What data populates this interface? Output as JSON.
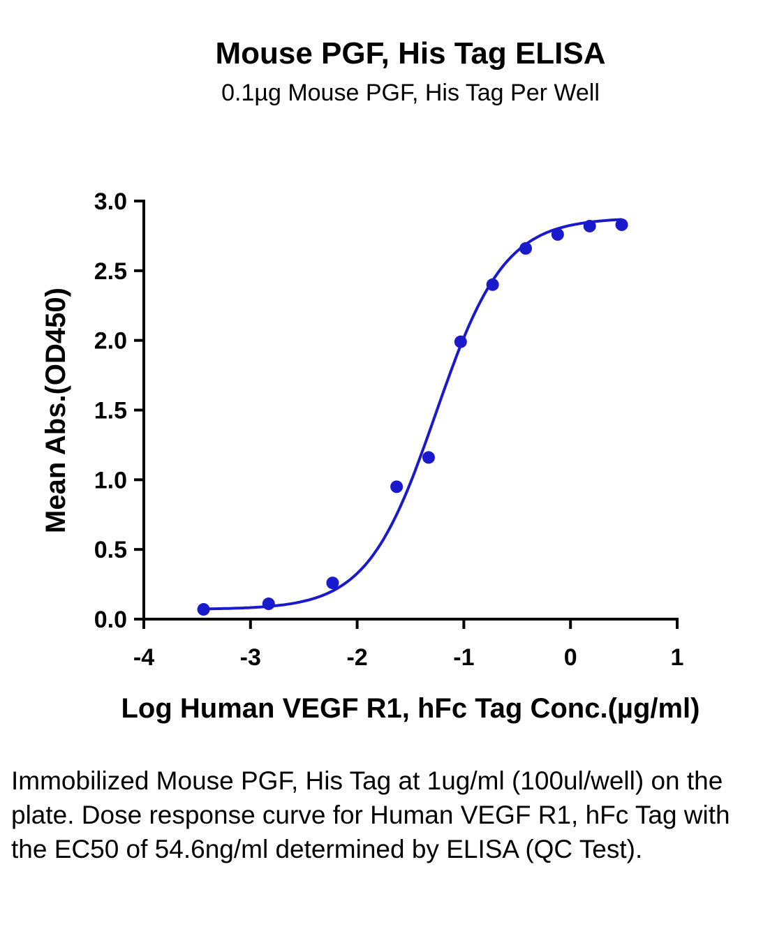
{
  "chart_data": {
    "type": "scatter",
    "title": "Mouse PGF, His Tag ELISA",
    "subtitle": "0.1µg Mouse PGF, His Tag Per Well",
    "xlabel": "Log Human VEGF R1, hFc Tag Conc.(µg/ml)",
    "ylabel": "Mean Abs.(OD450)",
    "xlim": [
      -4,
      1
    ],
    "ylim": [
      0,
      3
    ],
    "x_ticks": [
      "-4",
      "-3",
      "-2",
      "-1",
      "0",
      "1"
    ],
    "y_ticks": [
      "0.0",
      "0.5",
      "1.0",
      "1.5",
      "2.0",
      "2.5",
      "3.0"
    ],
    "series": [
      {
        "points": [
          {
            "x": -3.44,
            "y": 0.07
          },
          {
            "x": -2.83,
            "y": 0.11
          },
          {
            "x": -2.23,
            "y": 0.26
          },
          {
            "x": -1.63,
            "y": 0.95
          },
          {
            "x": -1.33,
            "y": 1.16
          },
          {
            "x": -1.03,
            "y": 1.99
          },
          {
            "x": -0.73,
            "y": 2.4
          },
          {
            "x": -0.42,
            "y": 2.66
          },
          {
            "x": -0.12,
            "y": 2.76
          },
          {
            "x": 0.18,
            "y": 2.82
          },
          {
            "x": 0.48,
            "y": 2.83
          }
        ],
        "fit": {
          "model": "4PL",
          "bottom": 0.07,
          "top": 2.88,
          "log_ec50": -1.263,
          "hill": 1.35
        }
      }
    ],
    "color": "#1a1acc",
    "grid": false,
    "legend": "none"
  },
  "caption": "Immobilized Mouse PGF, His Tag at 1ug/ml (100ul/well) on the plate. Dose response curve for Human VEGF R1, hFc Tag with the EC50 of 54.6ng/ml determined by ELISA (QC Test)."
}
